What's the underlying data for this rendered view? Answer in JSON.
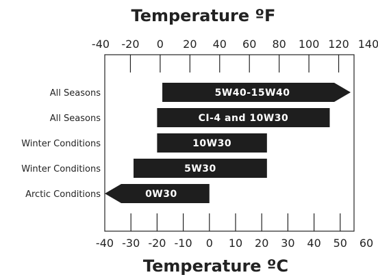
{
  "chart_data": {
    "type": "bar",
    "orientation": "horizontal",
    "title_top": "Temperature ºF",
    "title_bottom": "Temperature ºC",
    "fahrenheit_axis": {
      "ticks": [
        "-40",
        "-20",
        "0",
        "20",
        "40",
        "60",
        "80",
        "100",
        "120",
        "140"
      ],
      "range": [
        -40,
        140
      ]
    },
    "celsius_axis": {
      "ticks": [
        "-40",
        "-30",
        "-20",
        "-10",
        "0",
        "10",
        "20",
        "30",
        "40",
        "50",
        "60"
      ],
      "range": [
        -40,
        60
      ]
    },
    "grid": false,
    "categories": [
      "All Seasons",
      "All Seasons",
      "Winter Conditions",
      "Winter Conditions",
      "Arctic Conditions"
    ],
    "series": [
      {
        "bars": [
          {
            "label": "5W40-15W40",
            "min_c": -18,
            "max_c": 54,
            "arrow": "right"
          },
          {
            "label": "CI-4 and 10W30",
            "min_c": -20,
            "max_c": 46,
            "arrow": "none"
          },
          {
            "label": "10W30",
            "min_c": -20,
            "max_c": 22,
            "arrow": "none"
          },
          {
            "label": "5W30",
            "min_c": -29,
            "max_c": 22,
            "arrow": "none"
          },
          {
            "label": "0W30",
            "min_c": -40,
            "max_c": 0,
            "arrow": "left"
          }
        ]
      }
    ],
    "colors": {
      "bar": "#1e1e1e",
      "bar_text": "#ffffff",
      "text": "#222222",
      "frame": "#222222"
    }
  }
}
